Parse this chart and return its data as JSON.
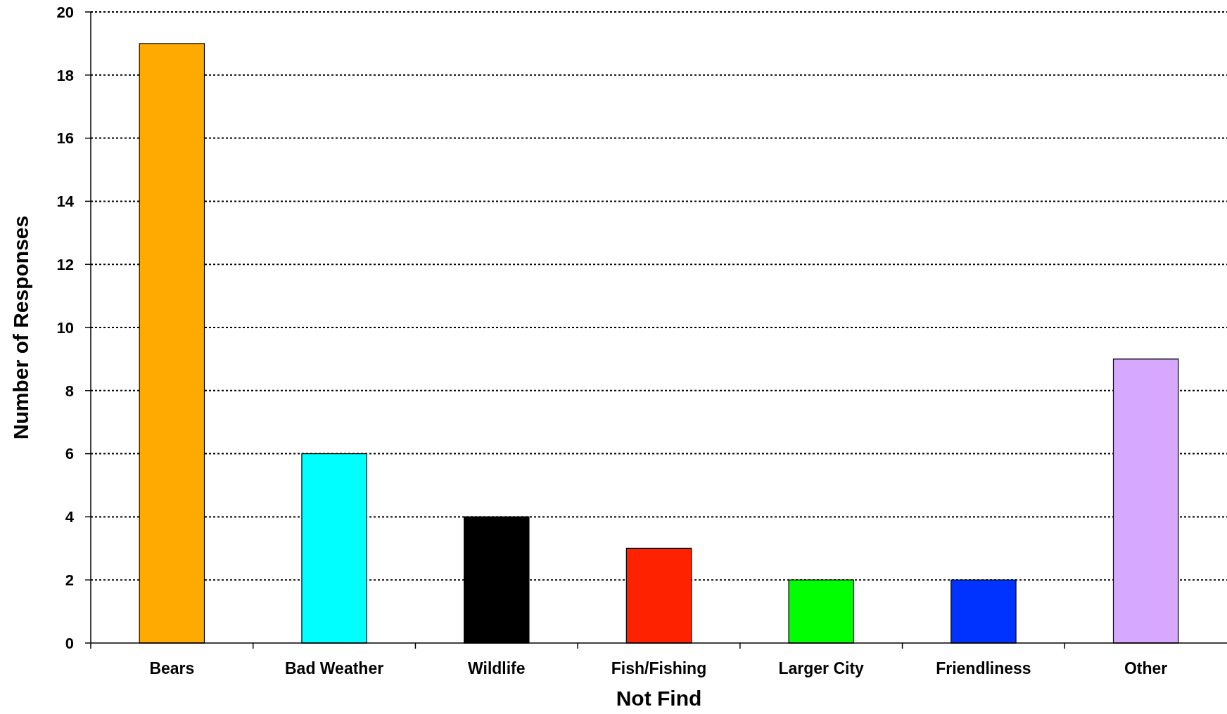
{
  "chart_data": {
    "type": "bar",
    "xlabel": "Not Find",
    "ylabel": "Number of Responses",
    "categories": [
      "Bears",
      "Bad Weather",
      "Wildlife",
      "Fish/Fishing",
      "Larger City",
      "Friendliness",
      "Other"
    ],
    "values": [
      19,
      6,
      4,
      3,
      2,
      2,
      9
    ],
    "colors": [
      "#ffaa00",
      "#00ffff",
      "#000000",
      "#ff2200",
      "#00ff00",
      "#0033ff",
      "#d6a8ff"
    ],
    "ylim": [
      0,
      20
    ],
    "yticks": [
      0,
      2,
      4,
      6,
      8,
      10,
      12,
      14,
      16,
      18,
      20
    ],
    "grid": "y"
  }
}
